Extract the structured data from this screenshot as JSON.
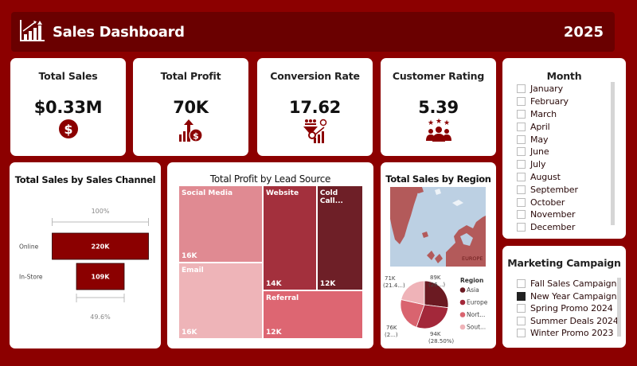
{
  "header": {
    "title": "Sales Dashboard",
    "year": "2025",
    "logo_icon": "bar-chart-growth-icon"
  },
  "kpis": [
    {
      "title": "Total Sales",
      "value": "$0.33M",
      "icon": "dollar-coin-icon"
    },
    {
      "title": "Total Profit",
      "value": "70K",
      "icon": "profit-growth-icon"
    },
    {
      "title": "Conversion Rate",
      "value": "17.62",
      "icon": "conversion-funnel-icon"
    },
    {
      "title": "Customer Rating",
      "value": "5.39",
      "icon": "customer-rating-icon"
    }
  ],
  "month_slicer": {
    "title": "Month",
    "items": [
      {
        "label": "January",
        "checked": false
      },
      {
        "label": "February",
        "checked": false
      },
      {
        "label": "March",
        "checked": false
      },
      {
        "label": "April",
        "checked": false
      },
      {
        "label": "May",
        "checked": false
      },
      {
        "label": "June",
        "checked": false
      },
      {
        "label": "July",
        "checked": false
      },
      {
        "label": "August",
        "checked": false
      },
      {
        "label": "September",
        "checked": false
      },
      {
        "label": "October",
        "checked": false
      },
      {
        "label": "November",
        "checked": false
      },
      {
        "label": "December",
        "checked": false
      }
    ]
  },
  "campaign_slicer": {
    "title": "Marketing Campaign",
    "items": [
      {
        "label": "Fall Sales Campaign",
        "checked": false
      },
      {
        "label": "New Year Campaign",
        "checked": true
      },
      {
        "label": "Spring Promo 2024",
        "checked": false
      },
      {
        "label": "Summer Deals 2024",
        "checked": false
      },
      {
        "label": "Winter Promo 2023",
        "checked": false
      }
    ]
  },
  "colors": {
    "background": "#8c0000",
    "header": "#6a0000",
    "accent": "#8b0000"
  },
  "chart_data": [
    {
      "type": "bar",
      "subtype": "funnel",
      "title": "Total Sales by Sales Channel",
      "categories": [
        "Online",
        "In-Store"
      ],
      "values": [
        220,
        109
      ],
      "value_labels": [
        "220K",
        "109K"
      ],
      "unit": "K",
      "top_percent_label": "100%",
      "bottom_percent_label": "49.6%",
      "color": "#8b0000"
    },
    {
      "type": "treemap",
      "title": "Total Profit by Lead Source",
      "categories": [
        "Social Media",
        "Email",
        "Website",
        "Cold Call...",
        "Referral"
      ],
      "values": [
        16,
        16,
        14,
        12,
        12
      ],
      "value_labels": [
        "16K",
        "16K",
        "14K",
        "12K",
        "12K"
      ],
      "colors": [
        "#e08a92",
        "#eeb4b8",
        "#a3303d",
        "#6e1f27",
        "#dd6672"
      ]
    },
    {
      "type": "map",
      "title": "Total Sales by Region",
      "visible_label": "EUROPE",
      "land_color": "#b35a5a",
      "water_color": "#bcd0e3"
    },
    {
      "type": "pie",
      "title": "",
      "legend_title": "Region",
      "legend_position": "right",
      "categories": [
        "Asia",
        "Europe",
        "Nort...",
        "Sout..."
      ],
      "values": [
        89,
        94,
        76,
        71
      ],
      "labels": [
        {
          "value": "89K",
          "pct": "(26...)"
        },
        {
          "value": "94K",
          "pct": "(28.50%)"
        },
        {
          "value": "76K",
          "pct": "(2...)"
        },
        {
          "value": "71K",
          "pct": "(21.4...)"
        }
      ],
      "colors": [
        "#6b1a22",
        "#a3283a",
        "#d9646f",
        "#efb3b8"
      ]
    }
  ]
}
